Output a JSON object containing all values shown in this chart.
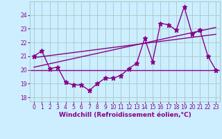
{
  "x": [
    0,
    1,
    2,
    3,
    4,
    5,
    6,
    7,
    8,
    9,
    10,
    11,
    12,
    13,
    14,
    15,
    16,
    17,
    18,
    19,
    20,
    21,
    22,
    23
  ],
  "y_main": [
    21.0,
    21.4,
    20.1,
    20.2,
    19.1,
    18.9,
    18.9,
    18.5,
    19.0,
    19.4,
    19.4,
    19.6,
    20.1,
    20.5,
    22.3,
    20.6,
    23.4,
    23.3,
    22.9,
    24.6,
    22.6,
    22.9,
    21.0,
    20.0
  ],
  "y_line1_start": 20.9,
  "y_line1_end": 22.6,
  "y_line2_start": 20.2,
  "y_line2_end": 23.1,
  "y_hline": 20.0,
  "ylim": [
    17.7,
    25.0
  ],
  "yticks": [
    18,
    19,
    20,
    21,
    22,
    23,
    24
  ],
  "xticks": [
    0,
    1,
    2,
    3,
    4,
    5,
    6,
    7,
    8,
    9,
    10,
    11,
    12,
    13,
    14,
    15,
    16,
    17,
    18,
    19,
    20,
    21,
    22,
    23
  ],
  "xlabel": "Windchill (Refroidissement éolien,°C)",
  "line_color": "#880088",
  "bg_color": "#cceeff",
  "grid_color": "#aacccc",
  "marker": "*",
  "marker_size": 5,
  "linewidth": 1.0,
  "tick_fontsize": 5.5,
  "xlabel_fontsize": 6.5
}
